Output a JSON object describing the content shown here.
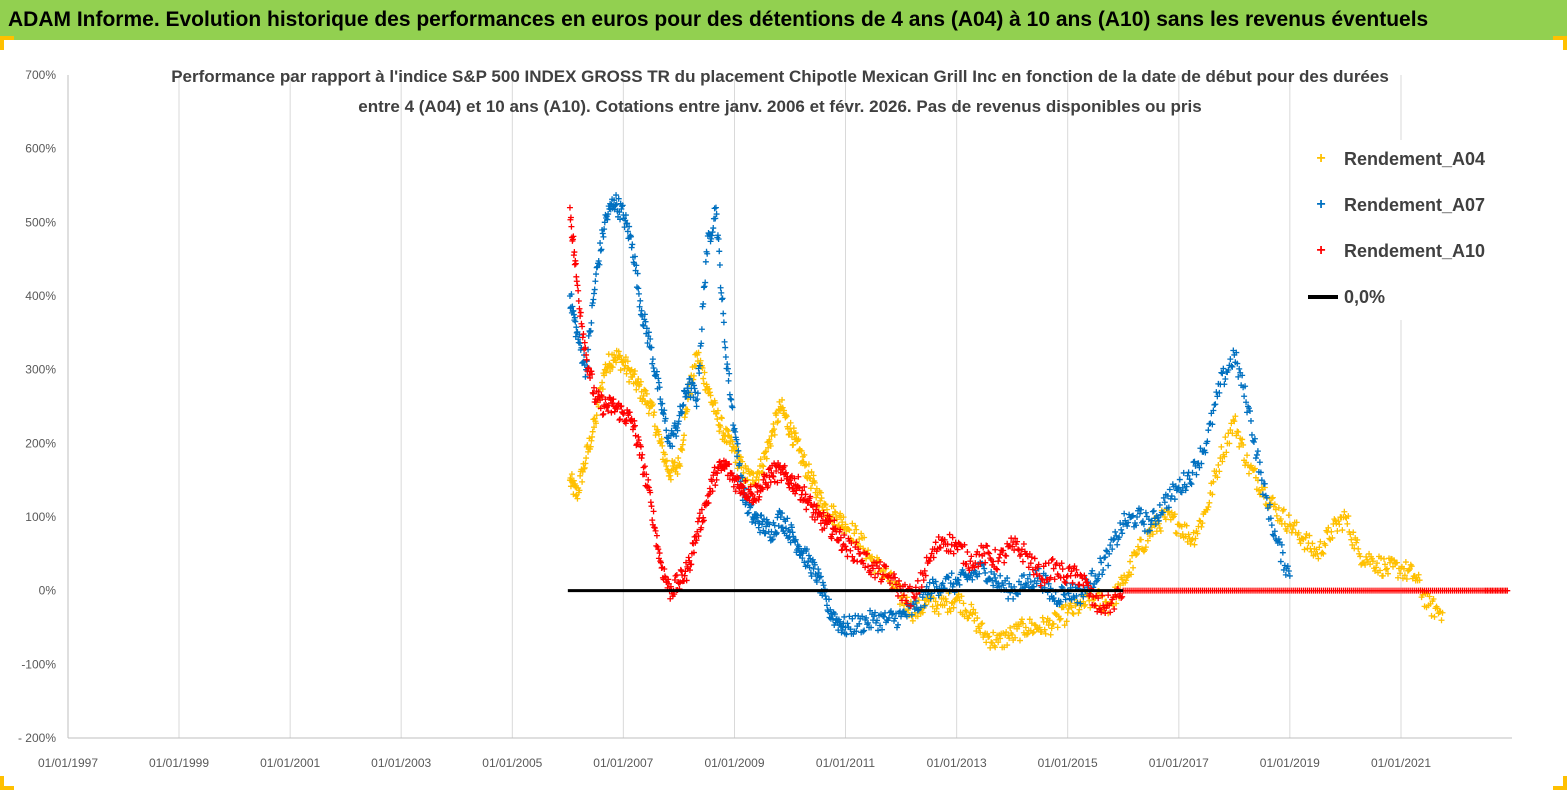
{
  "banner": {
    "title": "ADAM Informe. Evolution historique des performances en euros pour des détentions de 4 ans (A04) à 10 ans (A10) sans les revenus éventuels",
    "background": "#92d050"
  },
  "chart_data": {
    "type": "scatter",
    "title_lines": [
      "Performance par rapport à l'indice S&P 500 INDEX GROSS TR  du placement Chipotle Mexican Grill Inc en fonction de la date de début pour des durées",
      "entre 4 (A04) et 10 ans (A10). Cotations entre janv. 2006 et févr. 2026. Pas de revenus disponibles ou pris"
    ],
    "xlabel": "",
    "ylabel": "",
    "x_axis": {
      "type": "date",
      "min": "1997-01-01",
      "max": "2023-01-01",
      "tick_labels": [
        "01/01/1997",
        "01/01/1999",
        "01/01/2001",
        "01/01/2003",
        "01/01/2005",
        "01/01/2007",
        "01/01/2009",
        "01/01/2011",
        "01/01/2013",
        "01/01/2015",
        "01/01/2017",
        "01/01/2019",
        "01/01/2021"
      ]
    },
    "y_axis": {
      "min": -200,
      "max": 700,
      "step": 100,
      "unit": "%",
      "tick_labels": [
        "- 200%",
        "-100%",
        "0%",
        "100%",
        "200%",
        "300%",
        "400%",
        "500%",
        "600%",
        "700%"
      ]
    },
    "grid": "vertical",
    "legend_position": "right",
    "series": [
      {
        "name": "Rendement_A04",
        "color": "#ffc000",
        "marker": "+",
        "points": [
          [
            "2006-01-15",
            150
          ],
          [
            "2006-03-01",
            130
          ],
          [
            "2006-05-01",
            180
          ],
          [
            "2006-07-01",
            230
          ],
          [
            "2006-09-01",
            300
          ],
          [
            "2006-11-01",
            320
          ],
          [
            "2007-01-01",
            310
          ],
          [
            "2007-03-01",
            290
          ],
          [
            "2007-05-01",
            270
          ],
          [
            "2007-07-01",
            250
          ],
          [
            "2007-09-01",
            200
          ],
          [
            "2007-11-01",
            160
          ],
          [
            "2008-01-01",
            170
          ],
          [
            "2008-03-01",
            260
          ],
          [
            "2008-05-01",
            320
          ],
          [
            "2008-07-01",
            280
          ],
          [
            "2008-09-01",
            240
          ],
          [
            "2008-11-01",
            210
          ],
          [
            "2009-01-01",
            190
          ],
          [
            "2009-03-01",
            160
          ],
          [
            "2009-05-01",
            150
          ],
          [
            "2009-07-01",
            170
          ],
          [
            "2009-09-01",
            210
          ],
          [
            "2009-11-01",
            250
          ],
          [
            "2010-01-01",
            220
          ],
          [
            "2010-03-01",
            190
          ],
          [
            "2010-05-01",
            160
          ],
          [
            "2010-07-01",
            130
          ],
          [
            "2010-09-01",
            110
          ],
          [
            "2010-11-01",
            100
          ],
          [
            "2011-01-01",
            90
          ],
          [
            "2011-04-01",
            70
          ],
          [
            "2011-07-01",
            40
          ],
          [
            "2011-10-01",
            20
          ],
          [
            "2012-01-01",
            -10
          ],
          [
            "2012-04-01",
            -30
          ],
          [
            "2012-07-01",
            -15
          ],
          [
            "2012-10-01",
            -20
          ],
          [
            "2013-01-01",
            -10
          ],
          [
            "2013-04-01",
            -30
          ],
          [
            "2013-07-01",
            -60
          ],
          [
            "2013-10-01",
            -70
          ],
          [
            "2014-01-01",
            -60
          ],
          [
            "2014-04-01",
            -50
          ],
          [
            "2014-07-01",
            -50
          ],
          [
            "2014-10-01",
            -45
          ],
          [
            "2015-01-01",
            -30
          ],
          [
            "2015-04-01",
            -20
          ],
          [
            "2015-07-01",
            -10
          ],
          [
            "2015-10-01",
            -20
          ],
          [
            "2016-01-01",
            10
          ],
          [
            "2016-04-01",
            50
          ],
          [
            "2016-07-01",
            80
          ],
          [
            "2016-10-01",
            100
          ],
          [
            "2017-01-01",
            90
          ],
          [
            "2017-04-01",
            70
          ],
          [
            "2017-07-01",
            110
          ],
          [
            "2017-10-01",
            180
          ],
          [
            "2018-01-01",
            230
          ],
          [
            "2018-04-01",
            170
          ],
          [
            "2018-07-01",
            140
          ],
          [
            "2018-10-01",
            110
          ],
          [
            "2019-01-01",
            90
          ],
          [
            "2019-04-01",
            70
          ],
          [
            "2019-07-01",
            50
          ],
          [
            "2019-10-01",
            80
          ],
          [
            "2020-01-01",
            100
          ],
          [
            "2020-04-01",
            50
          ],
          [
            "2020-07-01",
            40
          ],
          [
            "2020-10-01",
            30
          ],
          [
            "2021-01-01",
            30
          ],
          [
            "2021-04-01",
            20
          ],
          [
            "2021-07-01",
            -20
          ],
          [
            "2021-10-01",
            -30
          ]
        ]
      },
      {
        "name": "Rendement_A07",
        "color": "#0070c0",
        "marker": "+",
        "points": [
          [
            "2006-01-15",
            400
          ],
          [
            "2006-03-01",
            350
          ],
          [
            "2006-05-01",
            300
          ],
          [
            "2006-07-01",
            420
          ],
          [
            "2006-09-01",
            500
          ],
          [
            "2006-11-01",
            530
          ],
          [
            "2007-01-01",
            510
          ],
          [
            "2007-03-01",
            470
          ],
          [
            "2007-05-01",
            380
          ],
          [
            "2007-07-01",
            330
          ],
          [
            "2007-09-01",
            260
          ],
          [
            "2007-11-01",
            200
          ],
          [
            "2008-01-01",
            230
          ],
          [
            "2008-03-01",
            280
          ],
          [
            "2008-05-01",
            260
          ],
          [
            "2008-07-01",
            460
          ],
          [
            "2008-09-01",
            520
          ],
          [
            "2008-11-01",
            330
          ],
          [
            "2009-01-01",
            220
          ],
          [
            "2009-03-01",
            130
          ],
          [
            "2009-05-01",
            100
          ],
          [
            "2009-07-01",
            90
          ],
          [
            "2009-09-01",
            80
          ],
          [
            "2009-11-01",
            100
          ],
          [
            "2010-01-01",
            80
          ],
          [
            "2010-03-01",
            60
          ],
          [
            "2010-05-01",
            40
          ],
          [
            "2010-07-01",
            20
          ],
          [
            "2010-09-01",
            -20
          ],
          [
            "2010-11-01",
            -40
          ],
          [
            "2011-01-01",
            -50
          ],
          [
            "2011-04-01",
            -45
          ],
          [
            "2011-07-01",
            -40
          ],
          [
            "2011-10-01",
            -40
          ],
          [
            "2012-01-01",
            -35
          ],
          [
            "2012-04-01",
            -25
          ],
          [
            "2012-07-01",
            0
          ],
          [
            "2012-10-01",
            10
          ],
          [
            "2013-01-01",
            10
          ],
          [
            "2013-04-01",
            20
          ],
          [
            "2013-07-01",
            30
          ],
          [
            "2013-10-01",
            10
          ],
          [
            "2014-01-01",
            0
          ],
          [
            "2014-04-01",
            10
          ],
          [
            "2014-07-01",
            20
          ],
          [
            "2014-10-01",
            -10
          ],
          [
            "2015-01-01",
            0
          ],
          [
            "2015-04-01",
            -5
          ],
          [
            "2015-07-01",
            20
          ],
          [
            "2015-10-01",
            50
          ],
          [
            "2016-01-01",
            90
          ],
          [
            "2016-04-01",
            100
          ],
          [
            "2016-07-01",
            90
          ],
          [
            "2016-10-01",
            120
          ],
          [
            "2017-01-01",
            140
          ],
          [
            "2017-04-01",
            160
          ],
          [
            "2017-07-01",
            200
          ],
          [
            "2017-10-01",
            280
          ],
          [
            "2018-01-01",
            320
          ],
          [
            "2018-04-01",
            250
          ],
          [
            "2018-07-01",
            150
          ],
          [
            "2018-10-01",
            70
          ],
          [
            "2019-01-01",
            20
          ]
        ]
      },
      {
        "name": "Rendement_A10",
        "color": "#ff0000",
        "marker": "+",
        "points": [
          [
            "2006-01-15",
            520
          ],
          [
            "2006-03-01",
            420
          ],
          [
            "2006-05-01",
            320
          ],
          [
            "2006-07-01",
            260
          ],
          [
            "2006-09-01",
            250
          ],
          [
            "2006-11-01",
            250
          ],
          [
            "2007-01-01",
            240
          ],
          [
            "2007-03-01",
            230
          ],
          [
            "2007-05-01",
            180
          ],
          [
            "2007-07-01",
            120
          ],
          [
            "2007-09-01",
            40
          ],
          [
            "2007-11-01",
            0
          ],
          [
            "2008-01-01",
            10
          ],
          [
            "2008-03-01",
            30
          ],
          [
            "2008-05-01",
            80
          ],
          [
            "2008-07-01",
            120
          ],
          [
            "2008-09-01",
            160
          ],
          [
            "2008-11-01",
            170
          ],
          [
            "2009-01-01",
            150
          ],
          [
            "2009-03-01",
            140
          ],
          [
            "2009-05-01",
            130
          ],
          [
            "2009-07-01",
            140
          ],
          [
            "2009-09-01",
            160
          ],
          [
            "2009-11-01",
            160
          ],
          [
            "2010-01-01",
            150
          ],
          [
            "2010-03-01",
            140
          ],
          [
            "2010-05-01",
            120
          ],
          [
            "2010-07-01",
            100
          ],
          [
            "2010-09-01",
            90
          ],
          [
            "2010-11-01",
            80
          ],
          [
            "2011-01-01",
            60
          ],
          [
            "2011-04-01",
            50
          ],
          [
            "2011-07-01",
            30
          ],
          [
            "2011-10-01",
            20
          ],
          [
            "2012-01-01",
            0
          ],
          [
            "2012-04-01",
            -10
          ],
          [
            "2012-07-01",
            40
          ],
          [
            "2012-10-01",
            70
          ],
          [
            "2013-01-01",
            60
          ],
          [
            "2013-04-01",
            40
          ],
          [
            "2013-07-01",
            50
          ],
          [
            "2013-10-01",
            40
          ],
          [
            "2014-01-01",
            60
          ],
          [
            "2014-04-01",
            50
          ],
          [
            "2014-07-01",
            20
          ],
          [
            "2014-10-01",
            30
          ],
          [
            "2015-01-01",
            20
          ],
          [
            "2015-04-01",
            20
          ],
          [
            "2015-07-01",
            -20
          ],
          [
            "2015-10-01",
            -20
          ],
          [
            "2016-01-01",
            0
          ],
          [
            "2016-07-01",
            0
          ],
          [
            "2017-01-01",
            0
          ],
          [
            "2017-07-01",
            0
          ],
          [
            "2018-01-01",
            0
          ],
          [
            "2018-07-01",
            0
          ],
          [
            "2019-01-01",
            0
          ],
          [
            "2019-07-01",
            0
          ],
          [
            "2020-01-01",
            0
          ],
          [
            "2020-07-01",
            0
          ],
          [
            "2021-01-01",
            0
          ],
          [
            "2021-07-01",
            0
          ],
          [
            "2022-01-01",
            0
          ],
          [
            "2022-07-01",
            0
          ],
          [
            "2022-12-01",
            0
          ]
        ]
      },
      {
        "name": "0,0%",
        "color": "#000000",
        "marker": "line",
        "points": [
          [
            "2006-01-01",
            0
          ],
          [
            "2016-01-01",
            0
          ]
        ]
      }
    ]
  }
}
